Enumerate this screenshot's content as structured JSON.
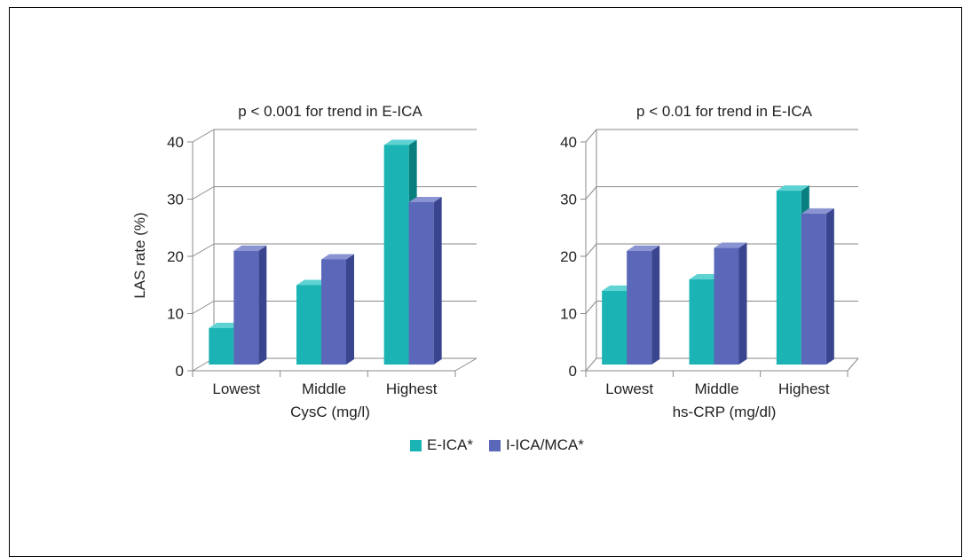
{
  "colors": {
    "eica": "#1bb3b3",
    "eica_top": "#5fd3d3",
    "eica_side": "#0a7f7f",
    "icamca": "#5b67b8",
    "icamca_top": "#8a94d3",
    "icamca_side": "#3a4590",
    "grid": "#8a8a8a"
  },
  "chart_data": [
    {
      "type": "bar",
      "title": "p < 0.001 for trend in E-ICA",
      "xlabel": "CysC (mg/l)",
      "ylabel": "LAS rate (%)",
      "categories": [
        "Lowest",
        "Middle",
        "Highest"
      ],
      "ylim": [
        0,
        40
      ],
      "yticks": [
        0,
        10,
        20,
        30,
        40
      ],
      "series": [
        {
          "name": "E-ICA*",
          "values": [
            7,
            14.5,
            39
          ]
        },
        {
          "name": "I-ICA/MCA*",
          "values": [
            20.5,
            19,
            29
          ]
        }
      ]
    },
    {
      "type": "bar",
      "title": "p < 0.01 for trend in E-ICA",
      "xlabel": "hs-CRP (mg/dl)",
      "ylabel": "",
      "categories": [
        "Lowest",
        "Middle",
        "Highest"
      ],
      "ylim": [
        0,
        40
      ],
      "yticks": [
        0,
        10,
        20,
        30,
        40
      ],
      "series": [
        {
          "name": "E-ICA*",
          "values": [
            13.5,
            15.5,
            31
          ]
        },
        {
          "name": "I-ICA/MCA*",
          "values": [
            20.5,
            21,
            27
          ]
        }
      ]
    }
  ],
  "legend": {
    "items": [
      "E-ICA*",
      "I-ICA/MCA*"
    ]
  }
}
